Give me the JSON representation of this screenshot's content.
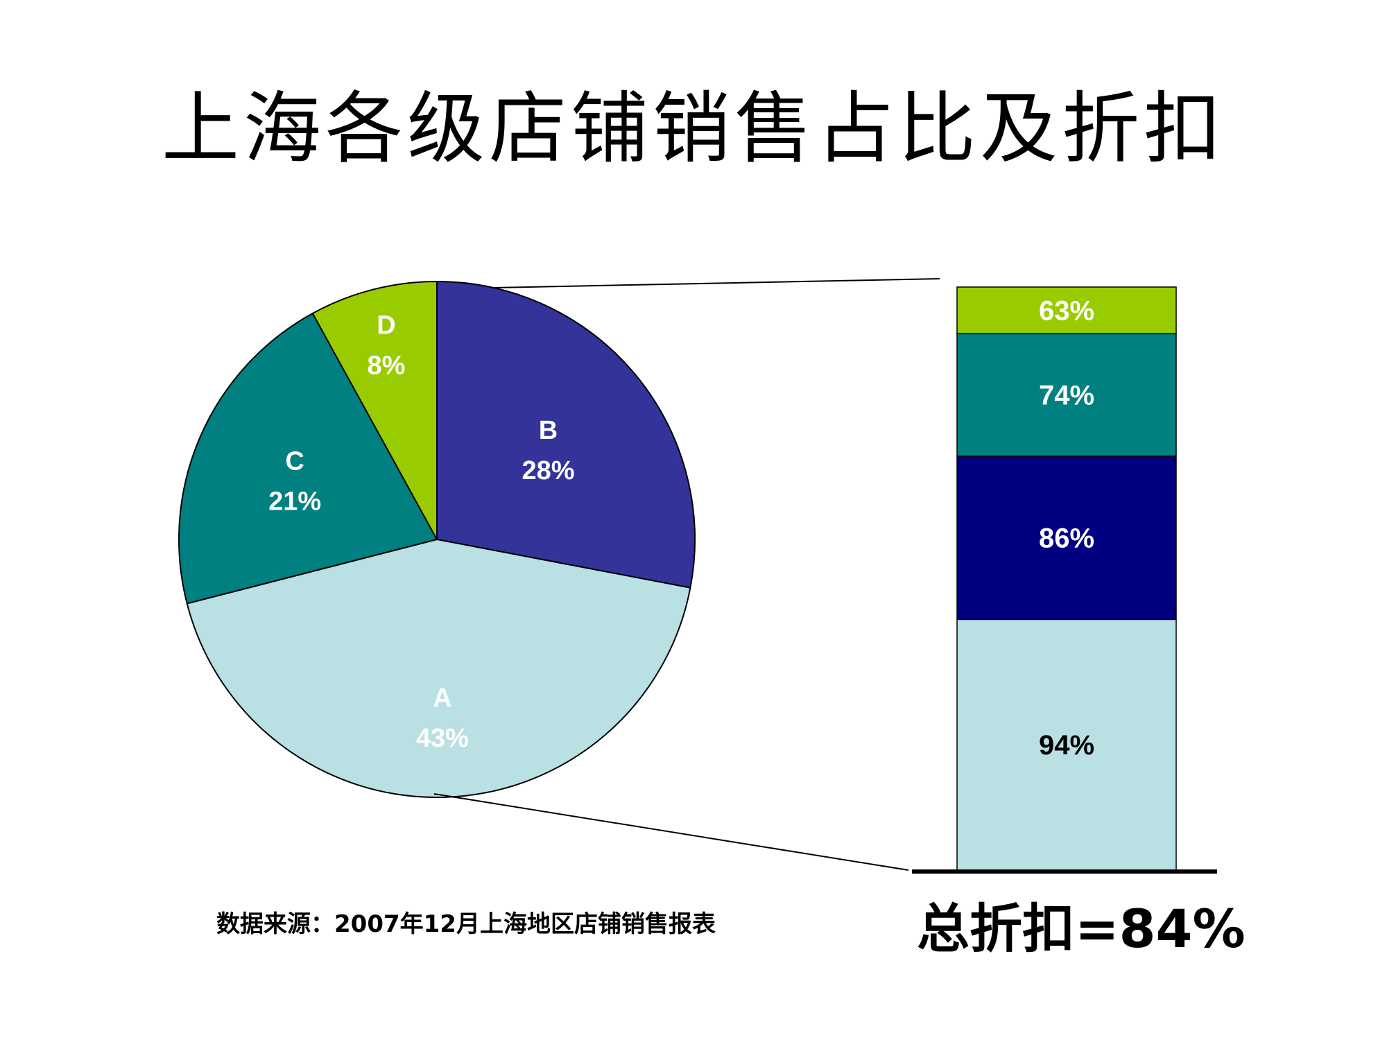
{
  "title": "上海各级店铺销售占比及折扣",
  "source": "数据来源：2007年12月上海地区店铺销售报表",
  "total_discount_text": "总折扣=84%",
  "chart_data": [
    {
      "type": "pie",
      "title": "",
      "categories": [
        "A",
        "B",
        "C",
        "D"
      ],
      "values": [
        43,
        28,
        21,
        8
      ],
      "labels": [
        "43%",
        "28%",
        "21%",
        "8%"
      ],
      "colors": [
        "#b9e0e3",
        "#333399",
        "#008080",
        "#99cc00"
      ],
      "label_colors": [
        "#ffffff",
        "#ffffff",
        "#ffffff",
        "#ffffff"
      ]
    },
    {
      "type": "bar",
      "stacked": true,
      "title": "",
      "categories": [
        "A",
        "B",
        "C",
        "D"
      ],
      "values": [
        94,
        86,
        74,
        63
      ],
      "labels": [
        "94%",
        "86%",
        "74%",
        "63%"
      ],
      "segment_weights": [
        43,
        28,
        21,
        8
      ],
      "colors": [
        "#b9e0e3",
        "#000080",
        "#008080",
        "#99cc00"
      ],
      "label_colors": [
        "#000000",
        "#ffffff",
        "#ffffff",
        "#ffffff"
      ]
    }
  ]
}
